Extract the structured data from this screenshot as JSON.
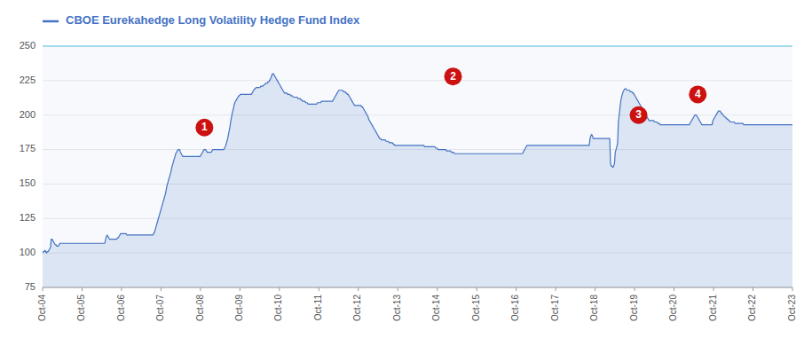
{
  "chart_data": {
    "type": "line",
    "title": "CBOE Eurekahedge Long Volatility Hedge Fund Index",
    "color": "#4472C4",
    "grid": true,
    "xlim": [
      0,
      19
    ],
    "xticks": [
      {
        "value": 0,
        "label": "Oct-04"
      },
      {
        "value": 1,
        "label": "Oct-05"
      },
      {
        "value": 2,
        "label": "Oct-06"
      },
      {
        "value": 3,
        "label": "Oct-07"
      },
      {
        "value": 4,
        "label": "Oct-08"
      },
      {
        "value": 5,
        "label": "Oct-09"
      },
      {
        "value": 6,
        "label": "Oct-10"
      },
      {
        "value": 7,
        "label": "Oct-11"
      },
      {
        "value": 8,
        "label": "Oct-12"
      },
      {
        "value": 9,
        "label": "Oct-13"
      },
      {
        "value": 10,
        "label": "Oct-14"
      },
      {
        "value": 11,
        "label": "Oct-15"
      },
      {
        "value": 12,
        "label": "Oct-16"
      },
      {
        "value": 13,
        "label": "Oct-17"
      },
      {
        "value": 14,
        "label": "Oct-18"
      },
      {
        "value": 15,
        "label": "Oct-19"
      },
      {
        "value": 16,
        "label": "Oct-20"
      },
      {
        "value": 17,
        "label": "Oct-21"
      },
      {
        "value": 18,
        "label": "Oct-22"
      },
      {
        "value": 19,
        "label": "Oct-23"
      }
    ],
    "ylim": [
      75,
      250
    ],
    "yticks": [
      75,
      100,
      125,
      150,
      175,
      200,
      225,
      250
    ],
    "annotations": [
      {
        "label": "1",
        "x": 4.1,
        "y": 191
      },
      {
        "label": "2",
        "x": 10.4,
        "y": 228
      },
      {
        "label": "3",
        "x": 15.1,
        "y": 200
      },
      {
        "label": "4",
        "x": 16.6,
        "y": 215
      }
    ],
    "values": [
      100,
      101,
      101,
      102,
      101,
      100,
      101,
      101,
      102,
      103,
      104,
      110,
      110,
      109,
      108,
      107,
      106,
      106,
      105,
      105,
      105,
      106,
      107,
      107,
      107,
      107,
      107,
      107,
      107,
      107,
      107,
      107,
      107,
      107,
      107,
      107,
      107,
      107,
      107,
      107,
      107,
      107,
      107,
      107,
      107,
      107,
      107,
      107,
      107,
      107,
      107,
      107,
      107,
      107,
      107,
      107,
      107,
      107,
      107,
      107,
      107,
      107,
      107,
      107,
      107,
      107,
      107,
      107,
      107,
      107,
      107,
      107,
      107,
      107,
      107,
      107,
      107,
      107,
      107,
      107,
      110,
      112,
      113,
      112,
      111,
      110,
      110,
      110,
      110,
      110,
      110,
      110,
      110,
      110,
      110,
      111,
      111,
      112,
      113,
      114,
      114,
      114,
      114,
      114,
      114,
      114,
      114,
      113,
      113,
      113,
      113,
      113,
      113,
      113,
      113,
      113,
      113,
      113,
      113,
      113,
      113,
      113,
      113,
      113,
      113,
      113,
      113,
      113,
      113,
      113,
      113,
      113,
      113,
      113,
      113,
      113,
      113,
      113,
      113,
      113,
      113,
      114,
      115,
      117,
      119,
      121,
      123,
      125,
      127,
      129,
      131,
      133,
      135,
      137,
      139,
      141,
      143,
      146,
      149,
      151,
      153,
      155,
      157,
      159,
      162,
      164,
      166,
      168,
      170,
      172,
      173,
      174,
      175,
      175,
      175,
      173,
      172,
      171,
      170,
      170,
      170,
      170,
      170,
      170,
      170,
      170,
      170,
      170,
      170,
      170,
      170,
      170,
      170,
      170,
      170,
      170,
      170,
      170,
      170,
      170,
      170,
      171,
      172,
      173,
      174,
      175,
      175,
      175,
      174,
      173,
      173,
      173,
      173,
      173,
      173,
      174,
      175,
      175,
      175,
      175,
      175,
      175,
      175,
      175,
      175,
      175,
      175,
      175,
      175,
      175,
      175,
      176,
      177,
      179,
      181,
      183,
      186,
      189,
      192,
      196,
      199,
      202,
      204,
      207,
      209,
      210,
      211,
      212,
      213,
      214,
      214,
      215,
      215,
      215,
      215,
      215,
      215,
      215,
      215,
      215,
      215,
      215,
      215,
      215,
      215,
      215,
      216,
      217,
      218,
      219,
      219,
      220,
      220,
      220,
      220,
      220,
      220,
      221,
      221,
      221,
      221,
      222,
      222,
      223,
      223,
      223,
      224,
      224,
      225,
      226,
      227,
      229,
      230,
      230,
      229,
      228,
      227,
      226,
      225,
      224,
      223,
      222,
      221,
      220,
      219,
      218,
      217,
      216,
      216,
      216,
      216,
      215,
      215,
      215,
      215,
      214,
      214,
      214,
      213,
      213,
      213,
      213,
      213,
      213,
      212,
      212,
      212,
      212,
      211,
      211,
      210,
      210,
      210,
      210,
      209,
      209,
      209,
      208,
      208,
      208,
      208,
      208,
      208,
      208,
      208,
      208,
      208,
      208,
      208,
      209,
      209,
      209,
      209,
      209,
      210,
      210,
      210,
      210,
      210,
      210,
      210,
      210,
      210,
      210,
      210,
      210,
      210,
      210,
      210,
      211,
      212,
      213,
      214,
      215,
      216,
      217,
      218,
      218,
      218,
      218,
      218,
      218,
      217,
      217,
      217,
      216,
      216,
      215,
      215,
      214,
      213,
      212,
      211,
      210,
      209,
      208,
      207,
      207,
      207,
      207,
      207,
      207,
      207,
      207,
      207,
      206,
      206,
      205,
      204,
      203,
      202,
      201,
      200,
      199,
      197,
      196,
      195,
      194,
      193,
      192,
      191,
      190,
      189,
      188,
      187,
      186,
      185,
      184,
      183,
      183,
      182,
      182,
      182,
      182,
      182,
      182,
      181,
      181,
      181,
      181,
      180,
      180,
      180,
      180,
      180,
      179,
      179,
      178,
      178,
      178,
      178,
      178,
      178,
      178,
      178,
      178,
      178,
      178,
      178,
      178,
      178,
      178,
      178,
      178,
      178,
      178,
      178,
      178,
      178,
      178,
      178,
      178,
      178,
      178,
      178,
      178,
      178,
      178,
      178,
      178,
      178,
      178,
      178,
      178,
      178,
      177,
      177,
      177,
      177,
      177,
      177,
      177,
      177,
      177,
      177,
      177,
      177,
      177,
      177,
      176,
      176,
      176,
      175,
      175,
      175,
      175,
      175,
      175,
      175,
      175,
      175,
      175,
      175,
      174,
      174,
      174,
      174,
      174,
      174,
      173,
      173,
      173,
      173,
      172,
      172,
      172,
      172,
      172,
      172,
      172,
      172,
      172,
      172,
      172,
      172,
      172,
      172,
      172,
      172,
      172,
      172,
      172,
      172,
      172,
      172,
      172,
      172,
      172,
      172,
      172,
      172,
      172,
      172,
      172,
      172,
      172,
      172,
      172,
      172,
      172,
      172,
      172,
      172,
      172,
      172,
      172,
      172,
      172,
      172,
      172,
      172,
      172,
      172,
      172,
      172,
      172,
      172,
      172,
      172,
      172,
      172,
      172,
      172,
      172,
      172,
      172,
      172,
      172,
      172,
      172,
      172,
      172,
      172,
      172,
      172,
      172,
      172,
      172,
      172,
      172,
      172,
      172,
      172,
      172,
      172,
      172,
      172,
      172,
      172,
      172,
      173,
      174,
      175,
      176,
      177,
      178,
      178,
      178,
      178,
      178,
      178,
      178,
      178,
      178,
      178,
      178,
      178,
      178,
      178,
      178,
      178,
      178,
      178,
      178,
      178,
      178,
      178,
      178,
      178,
      178,
      178,
      178,
      178,
      178,
      178,
      178,
      178,
      178,
      178,
      178,
      178,
      178,
      178,
      178,
      178,
      178,
      178,
      178,
      178,
      178,
      178,
      178,
      178,
      178,
      178,
      178,
      178,
      178,
      178,
      178,
      178,
      178,
      178,
      178,
      178,
      178,
      178,
      178,
      178,
      178,
      178,
      178,
      178,
      178,
      178,
      178,
      178,
      178,
      178,
      178,
      178,
      178,
      178,
      178,
      178,
      183,
      185,
      186,
      185,
      183,
      183,
      183,
      183,
      183,
      183,
      183,
      183,
      183,
      183,
      183,
      183,
      183,
      183,
      183,
      183,
      183,
      183,
      183,
      183,
      183,
      183,
      165,
      163,
      163,
      162,
      163,
      165,
      173,
      175,
      177,
      180,
      195,
      200,
      205,
      210,
      213,
      215,
      217,
      218,
      219,
      219,
      219,
      218,
      218,
      218,
      218,
      217,
      217,
      217,
      216,
      216,
      215,
      214,
      213,
      212,
      211,
      210,
      209,
      208,
      207,
      206,
      205,
      204,
      203,
      202,
      201,
      200,
      199,
      198,
      197,
      196,
      196,
      196,
      196,
      196,
      196,
      196,
      195,
      195,
      195,
      195,
      194,
      194,
      194,
      193,
      193,
      193,
      193,
      193,
      193,
      193,
      193,
      193,
      193,
      193,
      193,
      193,
      193,
      193,
      193,
      193,
      193,
      193,
      193,
      193,
      193,
      193,
      193,
      193,
      193,
      193,
      193,
      193,
      193,
      193,
      193,
      193,
      193,
      193,
      193,
      193,
      193,
      194,
      195,
      196,
      197,
      198,
      199,
      200,
      200,
      200,
      199,
      198,
      197,
      196,
      195,
      194,
      193,
      193,
      193,
      193,
      193,
      193,
      193,
      193,
      193,
      193,
      193,
      193,
      193,
      193,
      196,
      197,
      198,
      199,
      200,
      201,
      202,
      203,
      203,
      203,
      202,
      201,
      201,
      200,
      199,
      199,
      198,
      198,
      197,
      197,
      196,
      196,
      195,
      195,
      195,
      195,
      195,
      195,
      194,
      194,
      194,
      194,
      194,
      194,
      194,
      194,
      194,
      194,
      194,
      193,
      193,
      193,
      193,
      193,
      193,
      193,
      193,
      193,
      193,
      193,
      193,
      193,
      193,
      193,
      193,
      193,
      193,
      193,
      193,
      193,
      193,
      193,
      193,
      193,
      193,
      193,
      193,
      193,
      193,
      193,
      193,
      193,
      193,
      193,
      193,
      193,
      193,
      193,
      193,
      193,
      193,
      193,
      193,
      193,
      193,
      193,
      193,
      193,
      193,
      193,
      193,
      193,
      193,
      193,
      193,
      193,
      193,
      193,
      193,
      193,
      193,
      193
    ]
  }
}
